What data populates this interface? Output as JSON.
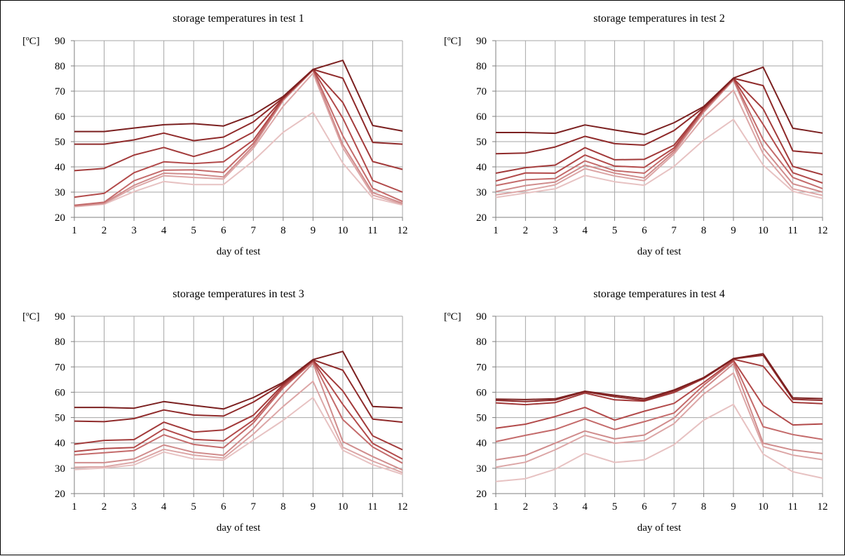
{
  "colors": {
    "grid": "#a6a6a6",
    "axis": "#7f7f7f",
    "series": [
      "#7b2020",
      "#8f2a2a",
      "#a23a3a",
      "#b24a4a",
      "#c46b6b",
      "#d08c8c",
      "#dca6a6",
      "#e7c2c2"
    ]
  },
  "chart_data": [
    {
      "type": "line",
      "title": "storage temperatures in test 1",
      "xlabel": "day of test",
      "ylabel": "[ºC]",
      "x": [
        1,
        2,
        3,
        4,
        5,
        6,
        7,
        8,
        9,
        10,
        11,
        12
      ],
      "ylim": [
        20,
        90
      ],
      "yticks": [
        20,
        30,
        40,
        50,
        60,
        70,
        80,
        90
      ],
      "grid": true,
      "series": [
        {
          "values": [
            54,
            54,
            55.4,
            56.7,
            57.1,
            56.2,
            60.6,
            67.9,
            78.6,
            82.2,
            56.4,
            54.2
          ]
        },
        {
          "values": [
            49,
            49,
            50.7,
            53.4,
            50.4,
            51.8,
            57.8,
            67.4,
            78.6,
            75.1,
            49.7,
            49
          ]
        },
        {
          "values": [
            38.5,
            39.4,
            44.7,
            47.7,
            44.1,
            47.5,
            53.8,
            67.2,
            78.6,
            65.5,
            42.1,
            39
          ]
        },
        {
          "values": [
            28,
            29.5,
            37.7,
            42,
            41.3,
            42,
            50.6,
            67,
            78.5,
            59.3,
            34.6,
            30
          ]
        },
        {
          "values": [
            24.8,
            26,
            34.5,
            38.7,
            38.8,
            37.8,
            49.3,
            66.8,
            78.4,
            52.3,
            31.5,
            26.3
          ]
        },
        {
          "values": [
            24.6,
            25.7,
            32.7,
            37.5,
            37.1,
            36,
            48.3,
            66.3,
            78.3,
            48.8,
            29.8,
            25.6
          ]
        },
        {
          "values": [
            24.4,
            25.4,
            31.8,
            36.5,
            35.8,
            35.2,
            47.4,
            64,
            77.1,
            47.5,
            28.8,
            25.2
          ]
        },
        {
          "values": [
            24.2,
            25.2,
            30.2,
            34.2,
            33,
            33,
            42.4,
            53.7,
            61.6,
            41.5,
            27.7,
            24.9
          ]
        }
      ]
    },
    {
      "type": "line",
      "title": "storage temperatures in test 2",
      "xlabel": "day of test",
      "ylabel": "[ºC]",
      "x": [
        1,
        2,
        3,
        4,
        5,
        6,
        7,
        8,
        9,
        10,
        11,
        12
      ],
      "ylim": [
        20,
        90
      ],
      "yticks": [
        20,
        30,
        40,
        50,
        60,
        70,
        80,
        90
      ],
      "grid": true,
      "series": [
        {
          "values": [
            53.6,
            53.6,
            53.3,
            56.6,
            54.6,
            52.8,
            57.5,
            63.9,
            75.2,
            79.5,
            55.3,
            53.4
          ]
        },
        {
          "values": [
            45.2,
            45.5,
            47.9,
            52.1,
            49.2,
            48.6,
            54.4,
            63.5,
            75.1,
            72.2,
            46.3,
            45.3
          ]
        },
        {
          "values": [
            37.5,
            39.7,
            40.7,
            47.6,
            42.8,
            43,
            48.6,
            63.1,
            75,
            63,
            40.2,
            36.9
          ]
        },
        {
          "values": [
            34.4,
            37.6,
            37.5,
            44.7,
            40.3,
            39.8,
            47.5,
            62.8,
            74.9,
            56.8,
            37.7,
            33.6
          ]
        },
        {
          "values": [
            32.6,
            34.9,
            35.4,
            42.4,
            38.5,
            37.5,
            46.7,
            62.4,
            74.7,
            50.8,
            35.8,
            31.4
          ]
        },
        {
          "values": [
            30.2,
            32.6,
            34,
            40.7,
            37.5,
            35.6,
            45.9,
            61.7,
            74.4,
            47.5,
            33.3,
            30
          ]
        },
        {
          "values": [
            28.9,
            30.6,
            32.9,
            39.3,
            36.4,
            34.5,
            45.1,
            59.6,
            70.4,
            45.2,
            31.3,
            28.7
          ]
        },
        {
          "values": [
            27.9,
            29.6,
            31.3,
            36.6,
            34.1,
            32.7,
            40.2,
            50.6,
            58.8,
            40.7,
            30.3,
            27.5
          ]
        }
      ]
    },
    {
      "type": "line",
      "title": "storage temperatures in test 3",
      "xlabel": "day of test",
      "ylabel": "[ºC]",
      "x": [
        1,
        2,
        3,
        4,
        5,
        6,
        7,
        8,
        9,
        10,
        11,
        12
      ],
      "ylim": [
        20,
        90
      ],
      "yticks": [
        20,
        30,
        40,
        50,
        60,
        70,
        80,
        90
      ],
      "grid": true,
      "series": [
        {
          "values": [
            54,
            54,
            53.7,
            56.3,
            54.8,
            53.4,
            57.9,
            63.9,
            72.9,
            76.1,
            54.4,
            53.8
          ]
        },
        {
          "values": [
            48.6,
            48.4,
            49.6,
            53,
            51,
            50.6,
            56.1,
            63.4,
            72.8,
            68.7,
            49.4,
            48.2
          ]
        },
        {
          "values": [
            39.5,
            41,
            41.3,
            48.2,
            44.3,
            45.1,
            50.9,
            63,
            72.6,
            60.5,
            42.8,
            37.3
          ]
        },
        {
          "values": [
            36.6,
            37.8,
            38.2,
            45.5,
            41.4,
            40.8,
            49,
            62.4,
            72.4,
            55.2,
            39.8,
            33.6
          ]
        },
        {
          "values": [
            35.3,
            36.1,
            37,
            43.2,
            39.4,
            38.1,
            47.9,
            61.7,
            72.1,
            49.2,
            38.4,
            32
          ]
        },
        {
          "values": [
            32.2,
            32.2,
            33.7,
            39.2,
            36.3,
            35.1,
            45.6,
            59.2,
            71.4,
            40.5,
            34.6,
            29.3
          ]
        },
        {
          "values": [
            30.4,
            30.6,
            32.4,
            37.5,
            35.2,
            34,
            43.5,
            54.4,
            64.3,
            38.3,
            32.8,
            28.3
          ]
        },
        {
          "values": [
            29.5,
            30.1,
            31.3,
            36.4,
            33.7,
            33.2,
            41.1,
            48.9,
            57.9,
            37.1,
            31.4,
            27.6
          ]
        }
      ]
    },
    {
      "type": "line",
      "title": "storage temperatures in test 4",
      "xlabel": "day of test",
      "ylabel": "[ºC]",
      "x": [
        1,
        2,
        3,
        4,
        5,
        6,
        7,
        8,
        9,
        10,
        11,
        12
      ],
      "ylim": [
        20,
        90
      ],
      "yticks": [
        20,
        30,
        40,
        50,
        60,
        70,
        80,
        90
      ],
      "grid": true,
      "series": [
        {
          "values": [
            57.3,
            57.1,
            57.4,
            60.4,
            58.8,
            57.4,
            60.9,
            65.8,
            73.3,
            75.2,
            57.8,
            57.5
          ]
        },
        {
          "values": [
            56.8,
            56.3,
            56.9,
            60.2,
            58.2,
            56.8,
            60.5,
            65.6,
            73.2,
            74.6,
            57.2,
            56.8
          ]
        },
        {
          "values": [
            55.8,
            55.1,
            55.9,
            59.7,
            57,
            56.5,
            59.9,
            65.4,
            73,
            70.3,
            56,
            55.5
          ]
        },
        {
          "values": [
            45.8,
            47.4,
            50.4,
            54,
            49,
            52.5,
            55.6,
            63.8,
            72.6,
            54.8,
            47.1,
            47.5
          ]
        },
        {
          "values": [
            40.5,
            43,
            45.3,
            49.5,
            45.3,
            48.4,
            51.8,
            62.8,
            72.2,
            46.4,
            43.3,
            41.4
          ]
        },
        {
          "values": [
            33.3,
            35.1,
            39.9,
            44.7,
            41.6,
            43.1,
            49.8,
            61.3,
            71.2,
            39.9,
            37.2,
            35.8
          ]
        },
        {
          "values": [
            30.4,
            32.4,
            37.3,
            43,
            39.9,
            40.9,
            47.6,
            59.3,
            67.6,
            38.6,
            35.2,
            33.4
          ]
        },
        {
          "values": [
            24.8,
            25.9,
            29.6,
            35.9,
            32.3,
            33.3,
            39.3,
            49,
            55.2,
            35.6,
            28.6,
            26.1
          ]
        }
      ]
    }
  ]
}
